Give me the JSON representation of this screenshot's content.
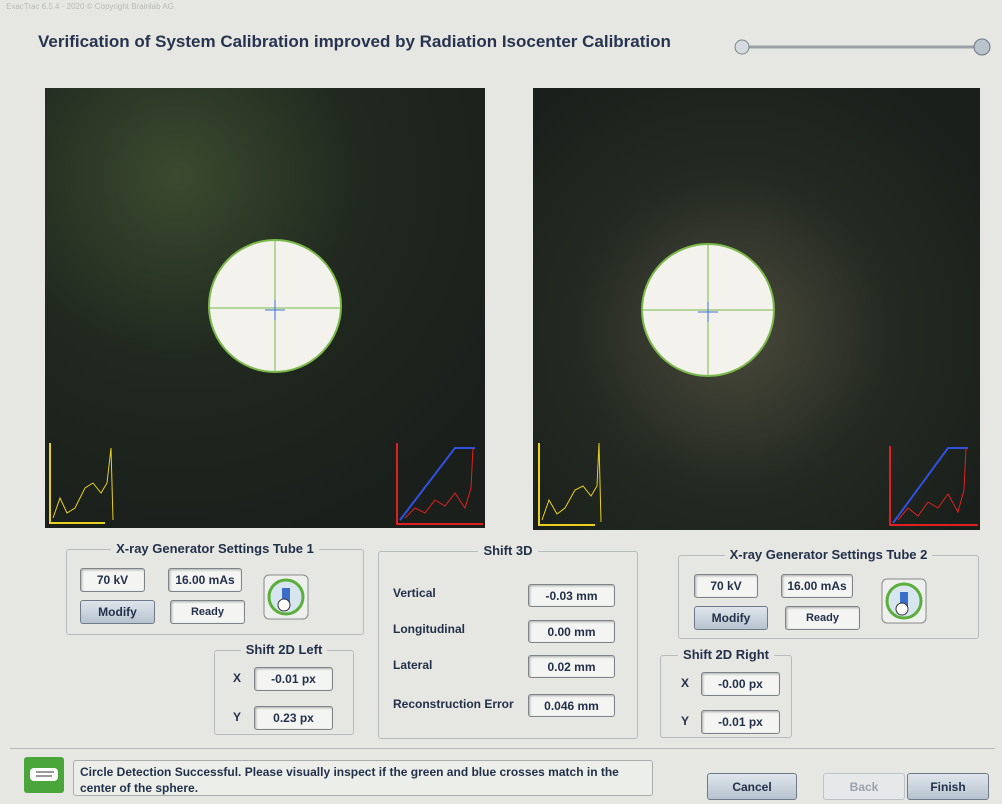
{
  "header": {
    "version": "ExacTrac 6.5.4 · 2020 © Copyright Brainlab AG",
    "title": "Verification of System Calibration improved by Radiation Isocenter Calibration"
  },
  "tube1": {
    "title": "X-ray Generator Settings Tube 1",
    "kv": "70 kV",
    "mas": "16.00 mAs",
    "modify": "Modify",
    "status": "Ready"
  },
  "tube2": {
    "title": "X-ray Generator Settings Tube 2",
    "kv": "70 kV",
    "mas": "16.00 mAs",
    "modify": "Modify",
    "status": "Ready"
  },
  "shift3d": {
    "title": "Shift 3D",
    "rows": [
      [
        "Vertical",
        "-0.03 mm"
      ],
      [
        "Longitudinal",
        "0.00 mm"
      ],
      [
        "Lateral",
        "0.02 mm"
      ],
      [
        "Reconstruction Error",
        "0.046 mm"
      ]
    ]
  },
  "shift2d_left": {
    "title": "Shift 2D Left",
    "rows": [
      [
        "X",
        "-0.01 px"
      ],
      [
        "Y",
        "0.23 px"
      ]
    ]
  },
  "shift2d_right": {
    "title": "Shift 2D Right",
    "rows": [
      [
        "X",
        "-0.00 px"
      ],
      [
        "Y",
        "-0.01 px"
      ]
    ]
  },
  "message": "Circle Detection Successful. Please visually inspect if the green and blue crosses match in the center of the sphere.",
  "buttons": {
    "cancel": "Cancel",
    "back": "Back",
    "finish": "Finish"
  }
}
